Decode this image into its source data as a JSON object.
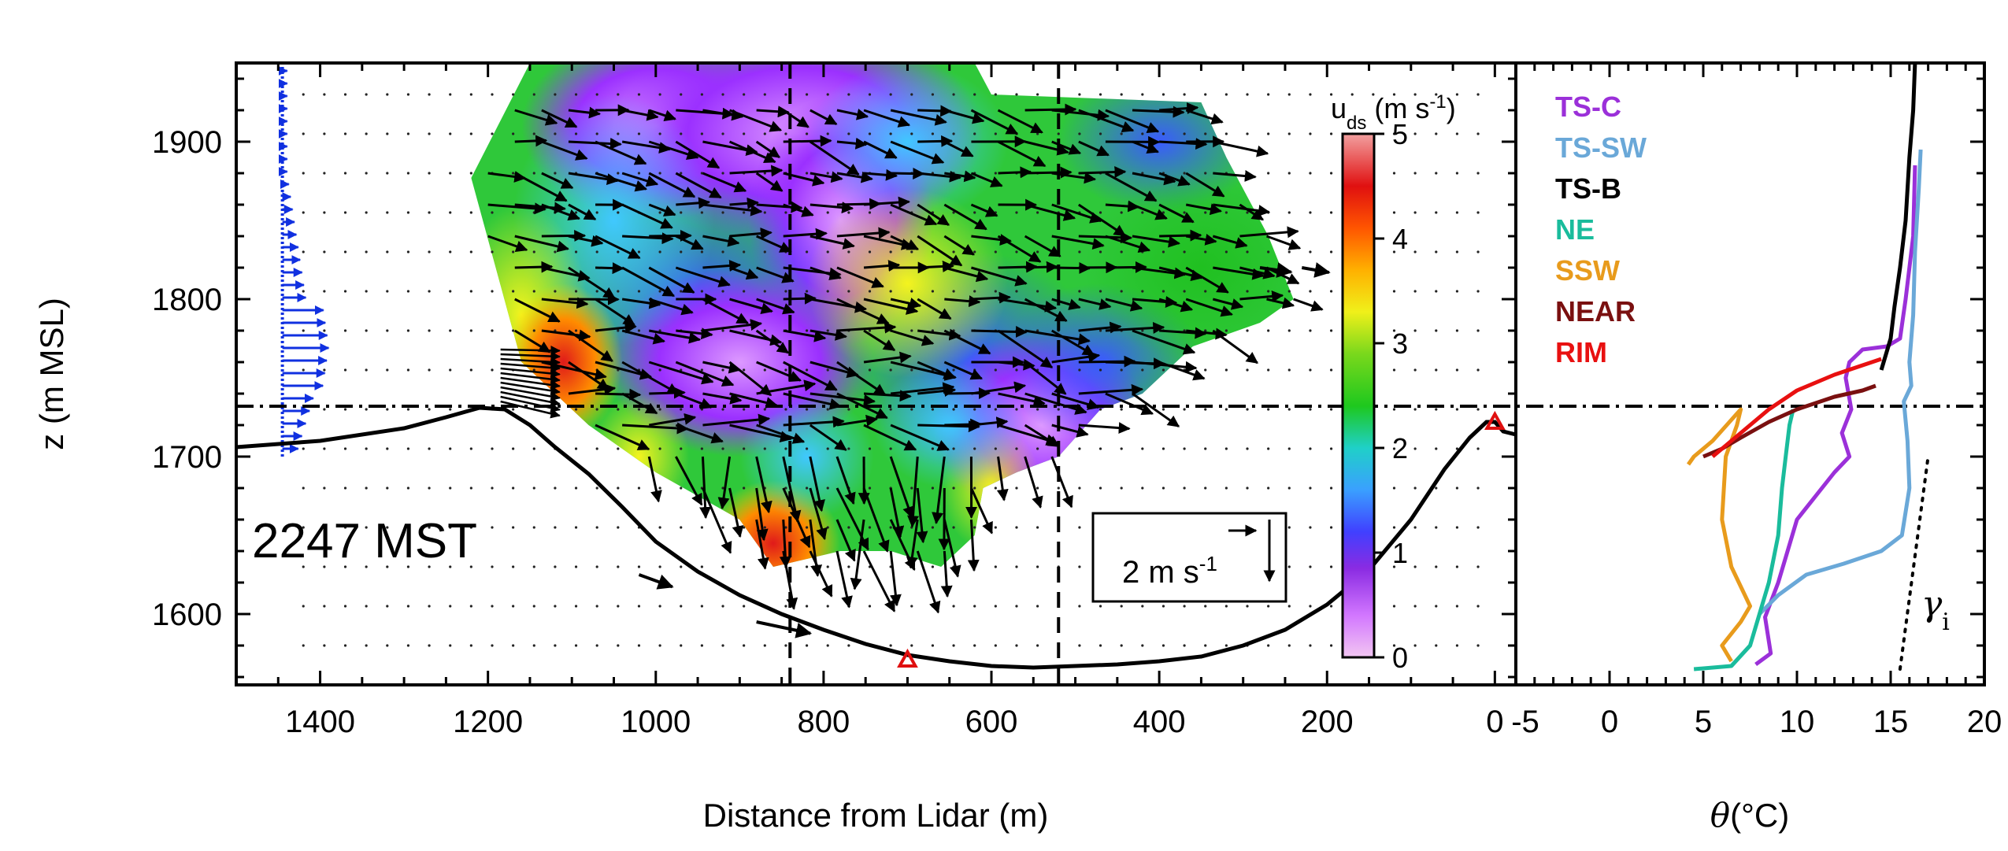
{
  "chart_data": [
    {
      "type": "contour",
      "panel": "left",
      "ylabel": "z (m MSL)",
      "xlabel": "Distance from Lidar (m)",
      "x_reversed": true,
      "xlim": [
        1500,
        -25
      ],
      "ylim": [
        1555,
        1950
      ],
      "xticks": [
        1400,
        1200,
        1000,
        800,
        600,
        400,
        200,
        0
      ],
      "yticks": [
        1600,
        1700,
        1800,
        1900
      ],
      "time_label": "2247 MST",
      "colorbar": {
        "label_main": "u",
        "label_sub": "ds",
        "label_rest": " (m s",
        "label_sup": "-1",
        "label_close": ")",
        "range": [
          0,
          5
        ],
        "ticks": [
          0,
          1,
          2,
          3,
          4,
          5
        ]
      },
      "reference_vector": {
        "label_main": "2 m s",
        "label_sup": "-1",
        "speed": 2
      },
      "inversion_height": 1732,
      "vertical_lines_x": [
        840,
        520
      ],
      "terrain": [
        [
          1500,
          1706
        ],
        [
          1400,
          1710
        ],
        [
          1300,
          1718
        ],
        [
          1250,
          1725
        ],
        [
          1210,
          1731
        ],
        [
          1180,
          1730
        ],
        [
          1150,
          1720
        ],
        [
          1120,
          1706
        ],
        [
          1080,
          1689
        ],
        [
          1040,
          1668
        ],
        [
          1000,
          1646
        ],
        [
          950,
          1627
        ],
        [
          900,
          1612
        ],
        [
          850,
          1600
        ],
        [
          800,
          1590
        ],
        [
          750,
          1581
        ],
        [
          700,
          1574
        ],
        [
          650,
          1570
        ],
        [
          600,
          1567
        ],
        [
          550,
          1566
        ],
        [
          500,
          1567
        ],
        [
          450,
          1568
        ],
        [
          400,
          1570
        ],
        [
          350,
          1573
        ],
        [
          300,
          1580
        ],
        [
          250,
          1590
        ],
        [
          200,
          1606
        ],
        [
          150,
          1628
        ],
        [
          100,
          1660
        ],
        [
          60,
          1692
        ],
        [
          30,
          1712
        ],
        [
          10,
          1722
        ],
        [
          0,
          1722
        ],
        [
          -10,
          1716
        ],
        [
          -25,
          1714
        ]
      ],
      "lidar_markers": [
        [
          700,
          1570
        ],
        [
          0,
          1721
        ]
      ],
      "speed_field_samples": [
        {
          "x": 1150,
          "z": 1780,
          "u": 4.4
        },
        {
          "x": 1100,
          "z": 1750,
          "u": 3.6
        },
        {
          "x": 1000,
          "z": 1880,
          "u": 0.8
        },
        {
          "x": 800,
          "z": 1860,
          "u": 0.3
        },
        {
          "x": 700,
          "z": 1850,
          "u": 2.5
        },
        {
          "x": 600,
          "z": 1810,
          "u": 2.8
        },
        {
          "x": 350,
          "z": 1800,
          "u": 2.3
        },
        {
          "x": 850,
          "z": 1635,
          "u": 4.2
        },
        {
          "x": 560,
          "z": 1720,
          "u": 0.5
        },
        {
          "x": 650,
          "z": 1680,
          "u": 2.4
        }
      ]
    },
    {
      "type": "line",
      "panel": "right",
      "xlabel_greek": "θ",
      "xlabel_rest": "(°C)",
      "xlim": [
        -5,
        20
      ],
      "ylim": [
        1555,
        1950
      ],
      "xticks": [
        -5,
        0,
        5,
        10,
        15,
        20
      ],
      "gamma_label": "γ",
      "gamma_sub": "i",
      "gamma_line": [
        [
          15.5,
          1565
        ],
        [
          17,
          1700
        ]
      ],
      "series": [
        {
          "name": "TS-C",
          "color": "#9b30d9",
          "points": [
            [
              7.8,
              1568
            ],
            [
              8.6,
              1575
            ],
            [
              8.3,
              1598
            ],
            [
              9.0,
              1620
            ],
            [
              9.5,
              1640
            ],
            [
              10.0,
              1660
            ],
            [
              11.0,
              1675
            ],
            [
              12.0,
              1690
            ],
            [
              12.8,
              1700
            ],
            [
              12.4,
              1715
            ],
            [
              12.9,
              1730
            ],
            [
              12.6,
              1750
            ],
            [
              12.8,
              1760
            ],
            [
              13.5,
              1768
            ],
            [
              14.8,
              1770
            ],
            [
              15.5,
              1775
            ],
            [
              15.8,
              1800
            ],
            [
              16.2,
              1840
            ],
            [
              16.3,
              1885
            ]
          ]
        },
        {
          "name": "TS-SW",
          "color": "#6aa8d8",
          "points": [
            [
              8.0,
              1600
            ],
            [
              9.0,
              1612
            ],
            [
              10.5,
              1625
            ],
            [
              12.5,
              1632
            ],
            [
              14.5,
              1640
            ],
            [
              15.6,
              1650
            ],
            [
              16.0,
              1680
            ],
            [
              15.9,
              1710
            ],
            [
              15.7,
              1735
            ],
            [
              16.1,
              1745
            ],
            [
              16.0,
              1760
            ],
            [
              16.2,
              1790
            ],
            [
              16.3,
              1830
            ],
            [
              16.5,
              1870
            ],
            [
              16.6,
              1895
            ]
          ]
        },
        {
          "name": "TS-B",
          "color": "#000000",
          "points": [
            [
              14.5,
              1755
            ],
            [
              15.0,
              1775
            ],
            [
              15.2,
              1795
            ],
            [
              15.5,
              1820
            ],
            [
              15.8,
              1850
            ],
            [
              16.0,
              1890
            ],
            [
              16.2,
              1920
            ],
            [
              16.3,
              1950
            ]
          ]
        },
        {
          "name": "NE",
          "color": "#1abc9c",
          "points": [
            [
              4.5,
              1565
            ],
            [
              6.5,
              1567
            ],
            [
              7.5,
              1580
            ],
            [
              8.0,
              1600
            ],
            [
              8.5,
              1620
            ],
            [
              9.0,
              1650
            ],
            [
              9.2,
              1680
            ],
            [
              9.4,
              1700
            ],
            [
              9.6,
              1720
            ],
            [
              9.8,
              1730
            ]
          ]
        },
        {
          "name": "SSW",
          "color": "#e89b1c",
          "points": [
            [
              6.5,
              1570
            ],
            [
              6.0,
              1580
            ],
            [
              7.0,
              1595
            ],
            [
              7.5,
              1605
            ],
            [
              6.5,
              1630
            ],
            [
              6.0,
              1660
            ],
            [
              6.2,
              1700
            ],
            [
              6.8,
              1720
            ],
            [
              7.0,
              1730
            ],
            [
              5.5,
              1710
            ],
            [
              4.5,
              1700
            ],
            [
              4.2,
              1695
            ]
          ]
        },
        {
          "name": "NEAR",
          "color": "#7a1010",
          "points": [
            [
              5.0,
              1700
            ],
            [
              6.0,
              1705
            ],
            [
              7.0,
              1712
            ],
            [
              8.5,
              1722
            ],
            [
              10.0,
              1730
            ],
            [
              12.0,
              1738
            ],
            [
              13.5,
              1742
            ],
            [
              14.2,
              1745
            ]
          ]
        },
        {
          "name": "RIM",
          "color": "#e81010",
          "points": [
            [
              5.5,
              1700
            ],
            [
              6.5,
              1710
            ],
            [
              7.5,
              1720
            ],
            [
              8.5,
              1730
            ],
            [
              10.0,
              1742
            ],
            [
              12.0,
              1752
            ],
            [
              13.5,
              1758
            ],
            [
              14.5,
              1762
            ]
          ]
        }
      ]
    }
  ]
}
